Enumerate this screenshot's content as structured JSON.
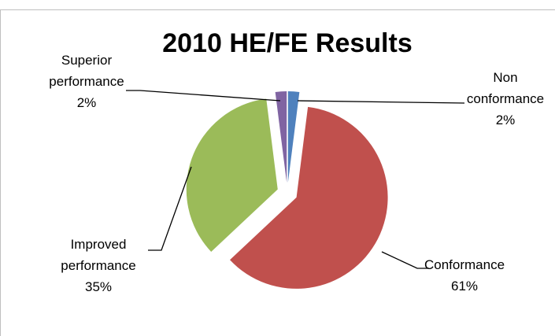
{
  "chart_data": {
    "type": "pie",
    "title": "2010 HE/FE Results",
    "categories": [
      "Non conformance",
      "Conformance",
      "Improved performance",
      "Superior performance"
    ],
    "values": [
      2,
      61,
      35,
      2
    ],
    "value_labels": [
      "2%",
      "61%",
      "35%",
      "2%"
    ],
    "colors": [
      "#4f81bd",
      "#c0504d",
      "#9bbb59",
      "#8064a2"
    ]
  }
}
